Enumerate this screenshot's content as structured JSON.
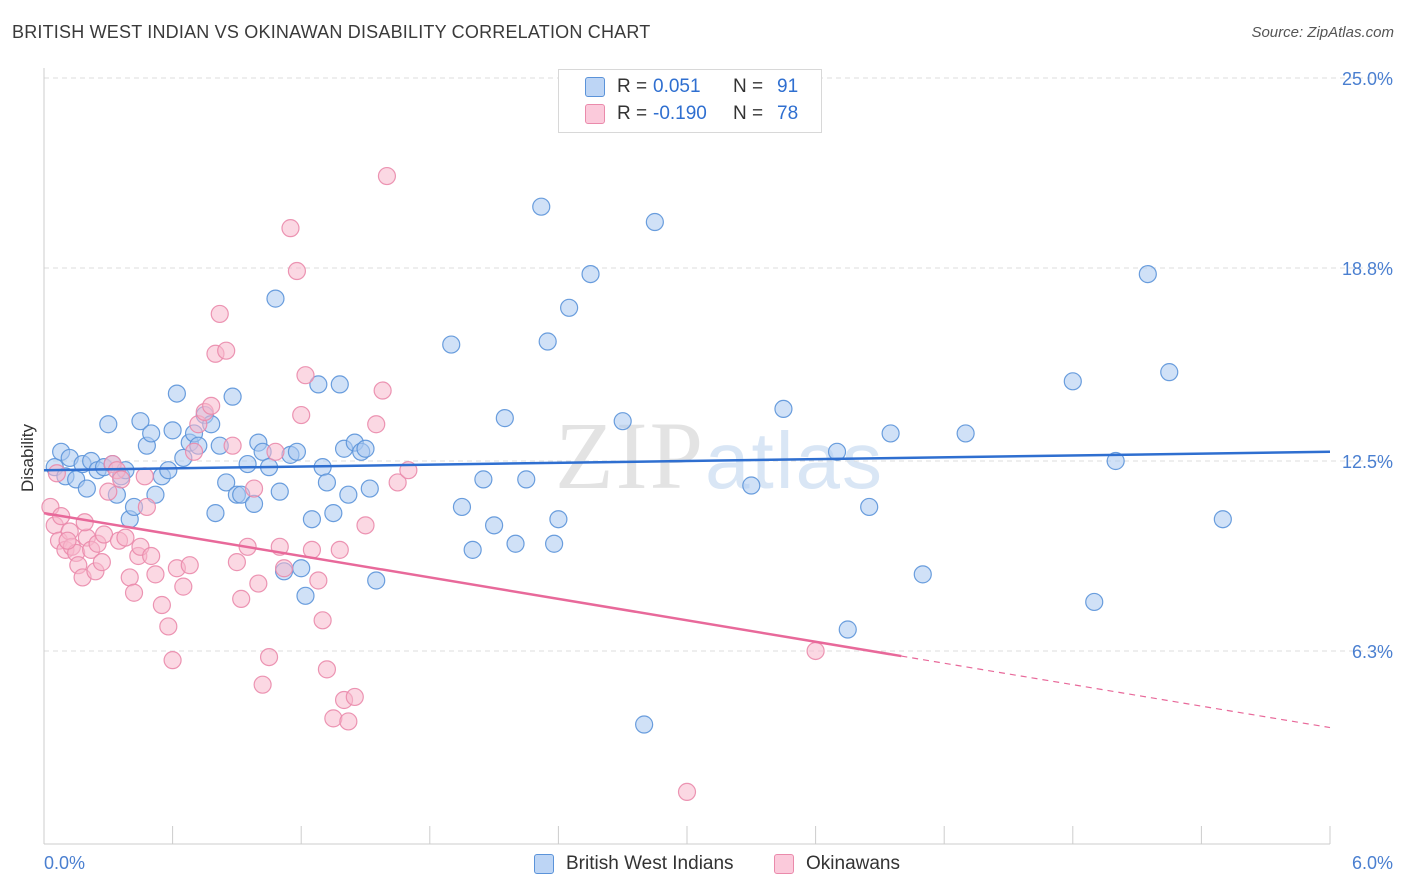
{
  "title": "BRITISH WEST INDIAN VS OKINAWAN DISABILITY CORRELATION CHART",
  "source": "Source: ZipAtlas.com",
  "watermark": {
    "zip": "ZIP",
    "atlas": "atlas"
  },
  "colors": {
    "blue_fill": "#a9c8f0",
    "blue_stroke": "#5b93d9",
    "blue_line": "#2f6fd0",
    "pink_fill": "#f7b8cc",
    "pink_stroke": "#ea8aab",
    "pink_line": "#e8699a",
    "grid": "#dddddd",
    "tick_text": "#4a7fd0"
  },
  "legend": {
    "rows": [
      {
        "r_label": "R =",
        "r_value": "0.051",
        "n_label": "N =",
        "n_value": "91",
        "series": "blue"
      },
      {
        "r_label": "R =",
        "r_value": "-0.190",
        "n_label": "N =",
        "n_value": "78",
        "series": "pink"
      }
    ]
  },
  "bottom_legend": [
    {
      "label": "British West Indians",
      "series": "blue"
    },
    {
      "label": "Okinawans",
      "series": "pink"
    }
  ],
  "chart_data": {
    "type": "scatter",
    "title": "BRITISH WEST INDIAN VS OKINAWAN DISABILITY CORRELATION CHART",
    "xlabel": "",
    "ylabel": "Disability",
    "xlim": [
      0.0,
      6.0
    ],
    "ylim": [
      0.0,
      25.0
    ],
    "x_tick_labels": [
      "0.0%",
      "6.0%"
    ],
    "y_ticks": [
      6.3,
      12.5,
      18.8,
      25.0
    ],
    "y_tick_labels": [
      "6.3%",
      "12.5%",
      "18.8%",
      "25.0%"
    ],
    "grid": true,
    "legend_position": "top-center",
    "series": [
      {
        "name": "British West Indians",
        "color": "#5b93d9",
        "R": 0.051,
        "N": 91,
        "trend": {
          "x": [
            0.0,
            6.0
          ],
          "y": [
            12.2,
            12.8
          ],
          "solid_until": 6.0
        },
        "points": [
          [
            0.05,
            12.3
          ],
          [
            0.08,
            12.8
          ],
          [
            0.1,
            12.0
          ],
          [
            0.12,
            12.6
          ],
          [
            0.15,
            11.9
          ],
          [
            0.18,
            12.4
          ],
          [
            0.2,
            11.6
          ],
          [
            0.22,
            12.5
          ],
          [
            0.25,
            12.2
          ],
          [
            0.28,
            12.3
          ],
          [
            0.3,
            13.7
          ],
          [
            0.32,
            12.4
          ],
          [
            0.34,
            11.4
          ],
          [
            0.36,
            12.0
          ],
          [
            0.38,
            12.2
          ],
          [
            0.4,
            10.6
          ],
          [
            0.42,
            11.0
          ],
          [
            0.45,
            13.8
          ],
          [
            0.48,
            13.0
          ],
          [
            0.5,
            13.4
          ],
          [
            0.52,
            11.4
          ],
          [
            0.55,
            12.0
          ],
          [
            0.58,
            12.2
          ],
          [
            0.6,
            13.5
          ],
          [
            0.62,
            14.7
          ],
          [
            0.65,
            12.6
          ],
          [
            0.68,
            13.1
          ],
          [
            0.7,
            13.4
          ],
          [
            0.72,
            13.0
          ],
          [
            0.75,
            14.0
          ],
          [
            0.78,
            13.7
          ],
          [
            0.8,
            10.8
          ],
          [
            0.82,
            13.0
          ],
          [
            0.85,
            11.8
          ],
          [
            0.88,
            14.6
          ],
          [
            0.9,
            11.4
          ],
          [
            0.92,
            11.4
          ],
          [
            0.95,
            12.4
          ],
          [
            0.98,
            11.1
          ],
          [
            1.0,
            13.1
          ],
          [
            1.02,
            12.8
          ],
          [
            1.05,
            12.3
          ],
          [
            1.08,
            17.8
          ],
          [
            1.1,
            11.5
          ],
          [
            1.12,
            8.9
          ],
          [
            1.15,
            12.7
          ],
          [
            1.18,
            12.8
          ],
          [
            1.2,
            9.0
          ],
          [
            1.22,
            8.1
          ],
          [
            1.25,
            10.6
          ],
          [
            1.28,
            15.0
          ],
          [
            1.3,
            12.3
          ],
          [
            1.32,
            11.8
          ],
          [
            1.35,
            10.8
          ],
          [
            1.38,
            15.0
          ],
          [
            1.4,
            12.9
          ],
          [
            1.42,
            11.4
          ],
          [
            1.45,
            13.1
          ],
          [
            1.48,
            12.8
          ],
          [
            1.5,
            12.9
          ],
          [
            1.52,
            11.6
          ],
          [
            1.55,
            8.6
          ],
          [
            1.9,
            16.3
          ],
          [
            1.95,
            11.0
          ],
          [
            2.0,
            9.6
          ],
          [
            2.05,
            11.9
          ],
          [
            2.1,
            10.4
          ],
          [
            2.15,
            13.9
          ],
          [
            2.2,
            9.8
          ],
          [
            2.25,
            11.9
          ],
          [
            2.32,
            20.8
          ],
          [
            2.35,
            16.4
          ],
          [
            2.38,
            9.8
          ],
          [
            2.4,
            10.6
          ],
          [
            2.45,
            17.5
          ],
          [
            2.55,
            18.6
          ],
          [
            2.7,
            13.8
          ],
          [
            2.8,
            3.9
          ],
          [
            2.85,
            20.3
          ],
          [
            3.3,
            11.7
          ],
          [
            3.45,
            14.2
          ],
          [
            3.7,
            12.8
          ],
          [
            3.75,
            7.0
          ],
          [
            3.85,
            11.0
          ],
          [
            3.95,
            13.4
          ],
          [
            4.1,
            8.8
          ],
          [
            4.3,
            13.4
          ],
          [
            4.8,
            15.1
          ],
          [
            4.9,
            7.9
          ],
          [
            5.0,
            12.5
          ],
          [
            5.15,
            18.6
          ],
          [
            5.25,
            15.4
          ],
          [
            5.5,
            10.6
          ]
        ]
      },
      {
        "name": "Okinawans",
        "color": "#ea8aab",
        "R": -0.19,
        "N": 78,
        "trend": {
          "x": [
            0.0,
            6.0
          ],
          "y": [
            10.8,
            3.8
          ],
          "solid_until": 4.0
        },
        "points": [
          [
            0.03,
            11.0
          ],
          [
            0.05,
            10.4
          ],
          [
            0.07,
            9.9
          ],
          [
            0.08,
            10.7
          ],
          [
            0.1,
            9.6
          ],
          [
            0.12,
            10.2
          ],
          [
            0.13,
            9.7
          ],
          [
            0.15,
            9.5
          ],
          [
            0.16,
            9.1
          ],
          [
            0.18,
            8.7
          ],
          [
            0.2,
            10.0
          ],
          [
            0.22,
            9.6
          ],
          [
            0.24,
            8.9
          ],
          [
            0.25,
            9.8
          ],
          [
            0.27,
            9.2
          ],
          [
            0.28,
            10.1
          ],
          [
            0.3,
            11.5
          ],
          [
            0.32,
            12.4
          ],
          [
            0.34,
            12.2
          ],
          [
            0.35,
            9.9
          ],
          [
            0.36,
            11.9
          ],
          [
            0.38,
            10.0
          ],
          [
            0.4,
            8.7
          ],
          [
            0.42,
            8.2
          ],
          [
            0.44,
            9.4
          ],
          [
            0.45,
            9.7
          ],
          [
            0.47,
            12.0
          ],
          [
            0.48,
            11.0
          ],
          [
            0.5,
            9.4
          ],
          [
            0.52,
            8.8
          ],
          [
            0.55,
            7.8
          ],
          [
            0.58,
            7.1
          ],
          [
            0.6,
            6.0
          ],
          [
            0.62,
            9.0
          ],
          [
            0.65,
            8.4
          ],
          [
            0.68,
            9.1
          ],
          [
            0.7,
            12.8
          ],
          [
            0.72,
            13.7
          ],
          [
            0.75,
            14.1
          ],
          [
            0.78,
            14.3
          ],
          [
            0.8,
            16.0
          ],
          [
            0.82,
            17.3
          ],
          [
            0.85,
            16.1
          ],
          [
            0.88,
            13.0
          ],
          [
            0.9,
            9.2
          ],
          [
            0.92,
            8.0
          ],
          [
            0.95,
            9.7
          ],
          [
            0.98,
            11.6
          ],
          [
            1.0,
            8.5
          ],
          [
            1.02,
            5.2
          ],
          [
            1.05,
            6.1
          ],
          [
            1.08,
            12.8
          ],
          [
            1.1,
            9.7
          ],
          [
            1.12,
            9.0
          ],
          [
            1.15,
            20.1
          ],
          [
            1.18,
            18.7
          ],
          [
            1.2,
            14.0
          ],
          [
            1.22,
            15.3
          ],
          [
            1.25,
            9.6
          ],
          [
            1.28,
            8.6
          ],
          [
            1.3,
            7.3
          ],
          [
            1.32,
            5.7
          ],
          [
            1.35,
            4.1
          ],
          [
            1.38,
            9.6
          ],
          [
            1.4,
            4.7
          ],
          [
            1.42,
            4.0
          ],
          [
            1.45,
            4.8
          ],
          [
            1.5,
            10.4
          ],
          [
            1.55,
            13.7
          ],
          [
            1.58,
            14.8
          ],
          [
            1.6,
            21.8
          ],
          [
            1.65,
            11.8
          ],
          [
            1.7,
            12.2
          ],
          [
            3.0,
            1.7
          ],
          [
            3.6,
            6.3
          ],
          [
            0.06,
            12.1
          ],
          [
            0.11,
            9.9
          ],
          [
            0.19,
            10.5
          ]
        ]
      }
    ]
  }
}
